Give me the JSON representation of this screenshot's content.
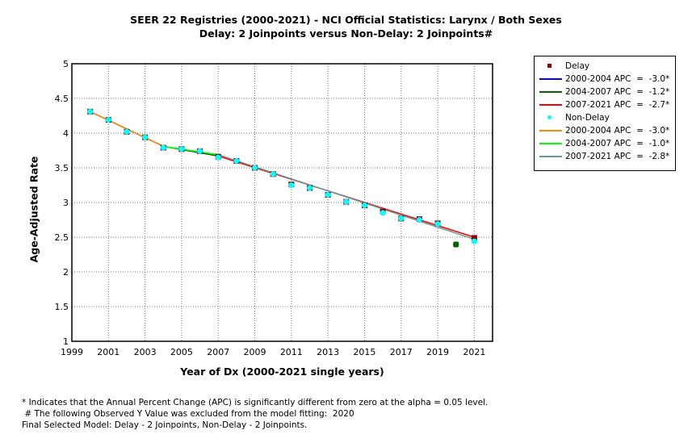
{
  "chart_data": {
    "type": "scatter",
    "title": "SEER 22 Registries (2000-2021) - NCI Official Statistics: Larynx / Both Sexes",
    "subtitle": "Delay: 2 Joinpoints  versus  Non-Delay: 2 Joinpoints#",
    "xlabel": "Year of Dx (2000-2021 single years)",
    "ylabel": "Age-Adjusted Rate",
    "xlim": [
      1999,
      2022
    ],
    "ylim": [
      1,
      5
    ],
    "x_ticks": [
      1999,
      2001,
      2003,
      2005,
      2007,
      2009,
      2011,
      2013,
      2015,
      2017,
      2019,
      2021
    ],
    "y_ticks": [
      1,
      1.5,
      2,
      2.5,
      3,
      3.5,
      4,
      4.5,
      5
    ],
    "y_tick_labels": [
      "1",
      "1.5",
      "2",
      "2.5",
      "3",
      "3.5",
      "4",
      "4.5",
      "5"
    ],
    "grid": true,
    "legend_position": "right",
    "x": [
      2000,
      2001,
      2002,
      2003,
      2004,
      2005,
      2006,
      2007,
      2008,
      2009,
      2010,
      2011,
      2012,
      2013,
      2014,
      2015,
      2016,
      2017,
      2018,
      2019,
      2020,
      2021
    ],
    "series": [
      {
        "name": "Delay",
        "kind": "observed",
        "color": "#8b0000",
        "values": [
          4.31,
          4.19,
          4.02,
          3.94,
          3.79,
          3.77,
          3.74,
          3.66,
          3.6,
          3.5,
          3.41,
          3.26,
          3.21,
          3.11,
          3.01,
          2.96,
          2.87,
          2.77,
          2.76,
          2.7,
          null,
          2.49
        ]
      },
      {
        "name": "Non-Delay",
        "kind": "observed",
        "color": "#00ffff",
        "values": [
          4.31,
          4.19,
          4.02,
          3.94,
          3.79,
          3.77,
          3.74,
          3.65,
          3.6,
          3.5,
          3.41,
          3.25,
          3.21,
          3.11,
          3.01,
          2.96,
          2.85,
          2.77,
          2.75,
          2.69,
          null,
          2.44
        ]
      }
    ],
    "excluded_points": [
      {
        "x": 2020,
        "y": 2.39,
        "color": "#006400",
        "note": "Observed value excluded from model fitting"
      }
    ],
    "fitted_segments": [
      {
        "label": "2000-2004 APC  =  -3.0*",
        "group": "Delay",
        "color": "#0000ff",
        "x": [
          2000,
          2004
        ],
        "y": [
          4.31,
          3.81
        ]
      },
      {
        "label": "2004-2007 APC  =  -1.2*",
        "group": "Delay",
        "color": "#006400",
        "x": [
          2004,
          2007
        ],
        "y": [
          3.81,
          3.67
        ]
      },
      {
        "label": "2007-2021 APC  =  -2.7*",
        "group": "Delay",
        "color": "#ff0000",
        "x": [
          2007,
          2021
        ],
        "y": [
          3.67,
          2.5
        ]
      },
      {
        "label": "2000-2004 APC  =  -3.0*",
        "group": "Non-Delay",
        "color": "#ff8c00",
        "x": [
          2000,
          2004
        ],
        "y": [
          4.31,
          3.81
        ]
      },
      {
        "label": "2004-2007 APC  =  -1.0*",
        "group": "Non-Delay",
        "color": "#00ff00",
        "x": [
          2004,
          2007
        ],
        "y": [
          3.81,
          3.69
        ]
      },
      {
        "label": "2007-2021 APC  =  -2.8*",
        "group": "Non-Delay",
        "color": "#5f9ea0",
        "x": [
          2007,
          2021
        ],
        "y": [
          3.69,
          2.47
        ]
      }
    ]
  },
  "legend": {
    "items": [
      {
        "type": "point",
        "label": "Delay",
        "color": "#8b0000"
      },
      {
        "type": "line",
        "label": "2000-2004 APC  =  -3.0*",
        "color": "#0000ff"
      },
      {
        "type": "line",
        "label": "2004-2007 APC  =  -1.2*",
        "color": "#006400"
      },
      {
        "type": "line",
        "label": "2007-2021 APC  =  -2.7*",
        "color": "#ff0000"
      },
      {
        "type": "point",
        "label": "Non-Delay",
        "color": "#00ffff"
      },
      {
        "type": "line",
        "label": "2000-2004 APC  =  -3.0*",
        "color": "#ff8c00"
      },
      {
        "type": "line",
        "label": "2004-2007 APC  =  -1.0*",
        "color": "#00ff00"
      },
      {
        "type": "line",
        "label": "2007-2021 APC  =  -2.8*",
        "color": "#5f9ea0"
      }
    ]
  },
  "notes": [
    "* Indicates that the Annual Percent Change (APC) is significantly different from zero at the alpha = 0.05 level.",
    " # The following Observed Y Value was excluded from the model fitting:  2020",
    "Final Selected Model: Delay - 2 Joinpoints, Non-Delay - 2 Joinpoints."
  ]
}
